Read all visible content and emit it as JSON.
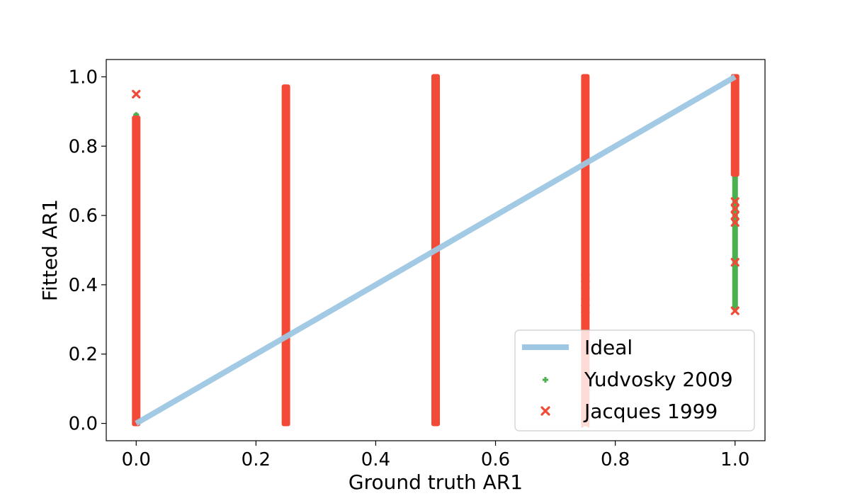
{
  "chart_data": {
    "type": "scatter",
    "xlabel": "Ground truth AR1",
    "ylabel": "Fitted AR1",
    "xlim": [
      -0.05,
      1.05
    ],
    "ylim": [
      -0.05,
      1.05
    ],
    "xticks": [
      "0.0",
      "0.2",
      "0.4",
      "0.6",
      "0.8",
      "1.0"
    ],
    "yticks": [
      "0.0",
      "0.2",
      "0.4",
      "0.6",
      "0.8",
      "1.0"
    ],
    "grid": false,
    "legend_position": "lower-right",
    "legend_labels": [
      "Ideal",
      "Yudvosky 2009",
      "Jacques 1999"
    ],
    "ideal_line": {
      "name": "Ideal",
      "color": "#9ec7e3",
      "x": [
        0.0,
        1.0
      ],
      "y": [
        0.0,
        1.0
      ]
    },
    "series": [
      {
        "name": "Yudvosky 2009",
        "marker": "plus",
        "color": "#4caf50",
        "bands": [
          {
            "x": 0.0,
            "ymin": 0.0,
            "ymax": 0.89
          },
          {
            "x": 0.25,
            "ymin": 0.0,
            "ymax": 0.96
          },
          {
            "x": 0.5,
            "ymin": 0.0,
            "ymax": 1.0
          },
          {
            "x": 0.75,
            "ymin": 0.32,
            "ymax": 1.0
          },
          {
            "x": 1.0,
            "ymin": 0.33,
            "ymax": 1.0
          }
        ],
        "outliers": [
          {
            "x": 0.0,
            "y": 0.89
          },
          {
            "x": 0.75,
            "y": 0.43
          },
          {
            "x": 0.75,
            "y": 0.32
          },
          {
            "x": 1.0,
            "y": 0.65
          },
          {
            "x": 1.0,
            "y": 0.61
          },
          {
            "x": 1.0,
            "y": 0.47
          },
          {
            "x": 1.0,
            "y": 0.335
          }
        ]
      },
      {
        "name": "Jacques 1999",
        "marker": "x",
        "color": "#f24a36",
        "bands": [
          {
            "x": 0.0,
            "ymin": 0.0,
            "ymax": 0.88
          },
          {
            "x": 0.25,
            "ymin": 0.0,
            "ymax": 0.97
          },
          {
            "x": 0.5,
            "ymin": 0.0,
            "ymax": 1.0
          },
          {
            "x": 0.75,
            "ymin": 0.0,
            "ymax": 1.0
          },
          {
            "x": 1.0,
            "ymin": 0.72,
            "ymax": 1.0
          }
        ],
        "outliers": [
          {
            "x": 0.0,
            "y": 0.95
          },
          {
            "x": 0.75,
            "y": 0.42
          },
          {
            "x": 0.75,
            "y": 0.4
          },
          {
            "x": 0.75,
            "y": 0.35
          },
          {
            "x": 0.75,
            "y": 0.33
          },
          {
            "x": 0.75,
            "y": 0.26
          },
          {
            "x": 0.75,
            "y": 0.22
          },
          {
            "x": 0.75,
            "y": 0.18
          },
          {
            "x": 0.75,
            "y": 0.12
          },
          {
            "x": 0.75,
            "y": 0.0
          },
          {
            "x": 1.0,
            "y": 0.64
          },
          {
            "x": 1.0,
            "y": 0.62
          },
          {
            "x": 1.0,
            "y": 0.6
          },
          {
            "x": 1.0,
            "y": 0.58
          },
          {
            "x": 1.0,
            "y": 0.465
          },
          {
            "x": 1.0,
            "y": 0.325
          }
        ]
      }
    ]
  }
}
